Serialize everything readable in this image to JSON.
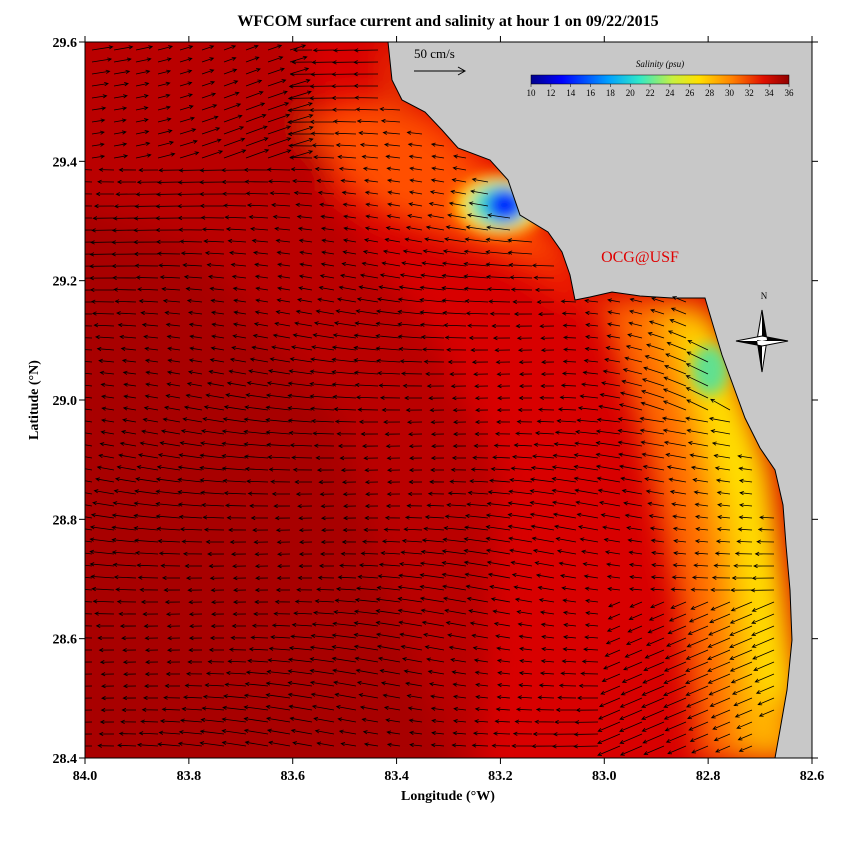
{
  "map": {
    "title": "WFCOM surface current and salinity at hour 1 on 09/22/2015",
    "xlabel": "Longitude (°W)",
    "ylabel": "Latitude (°N)",
    "xlim": [
      84.0,
      82.6
    ],
    "xticks": [
      {
        "value": 84.0,
        "label": "84.0"
      },
      83.8,
      83.6,
      83.4,
      83.2,
      {
        "value": 83.0,
        "label": "83.0"
      },
      82.8,
      82.6
    ],
    "ylim": [
      28.4,
      29.6
    ],
    "yticks": [
      28.4,
      28.6,
      28.8,
      {
        "value": 29.0,
        "label": "29.0"
      },
      29.2,
      29.4,
      29.6
    ],
    "colorbar": {
      "label": "Salinity (psu)",
      "lim": [
        10,
        36
      ],
      "ticks": [
        10,
        12,
        14,
        16,
        18,
        20,
        22,
        24,
        26,
        28,
        30,
        32,
        34,
        36
      ]
    },
    "scale_label": "50 cm/s",
    "credit": "OCG@USF",
    "north": "N"
  }
}
